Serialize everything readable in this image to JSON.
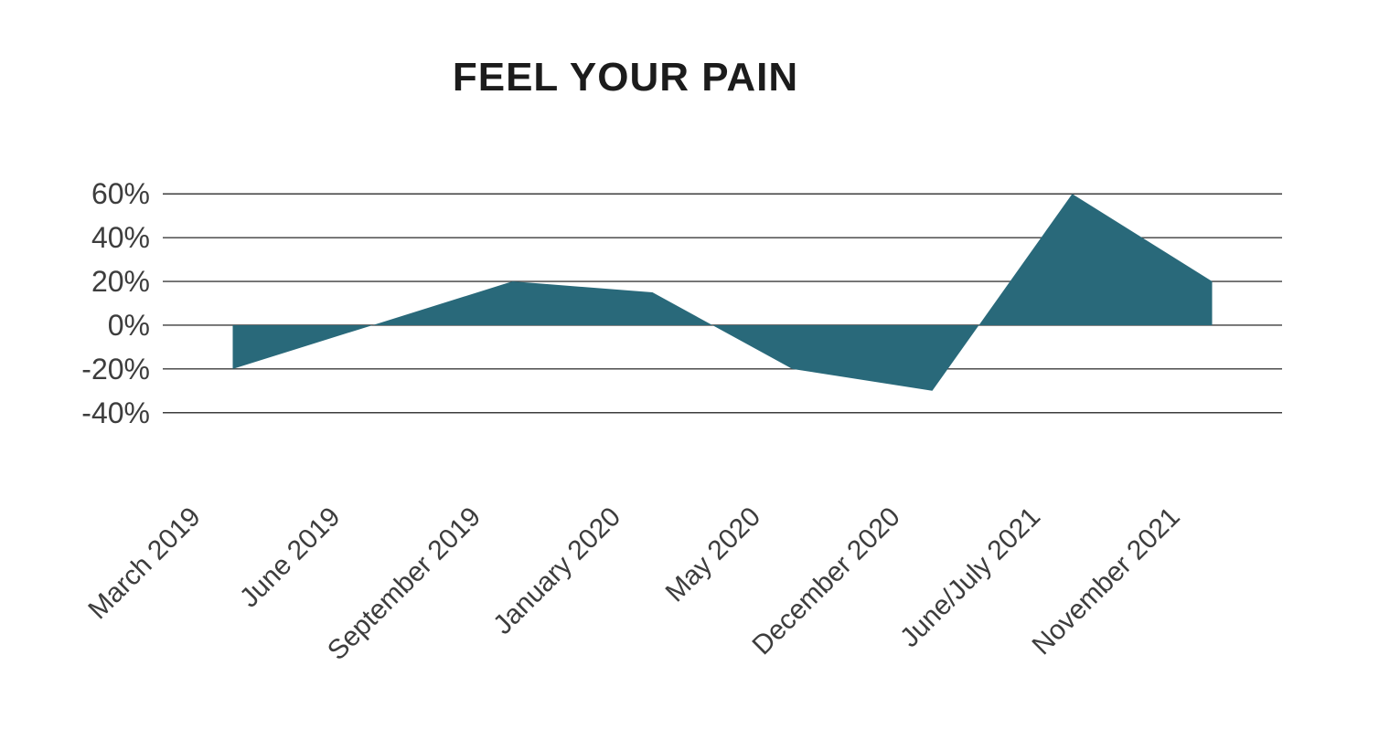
{
  "title": "FEEL YOUR PAIN",
  "colors": {
    "background": "#FFFFFF",
    "area_fill": "#29697A",
    "gridline": "#3C3C3C",
    "title_text": "#1C1C1C",
    "axis_label_text": "#3D3D3D"
  },
  "chart_data": {
    "type": "area",
    "title": "FEEL YOUR PAIN",
    "categories": [
      "March 2019",
      "June 2019",
      "September 2019",
      "January 2020",
      "May 2020",
      "December 2020",
      "June/July 2021",
      "November 2021"
    ],
    "values": [
      -20,
      0,
      20,
      15,
      -20,
      -30,
      60,
      20
    ],
    "unit": "%",
    "xlabel": "",
    "ylabel": "",
    "ylim": [
      -40,
      60
    ],
    "ytick_step": 20,
    "yticks": [
      "60%",
      "40%",
      "20%",
      "0%",
      "-20%",
      "-40%"
    ],
    "grid": "horizontal gridlines on, vertical off",
    "legend": "none",
    "baseline": 0,
    "x_label_rotation_deg": 45,
    "area_closes_to_baseline_with_vertical_edges": true
  }
}
